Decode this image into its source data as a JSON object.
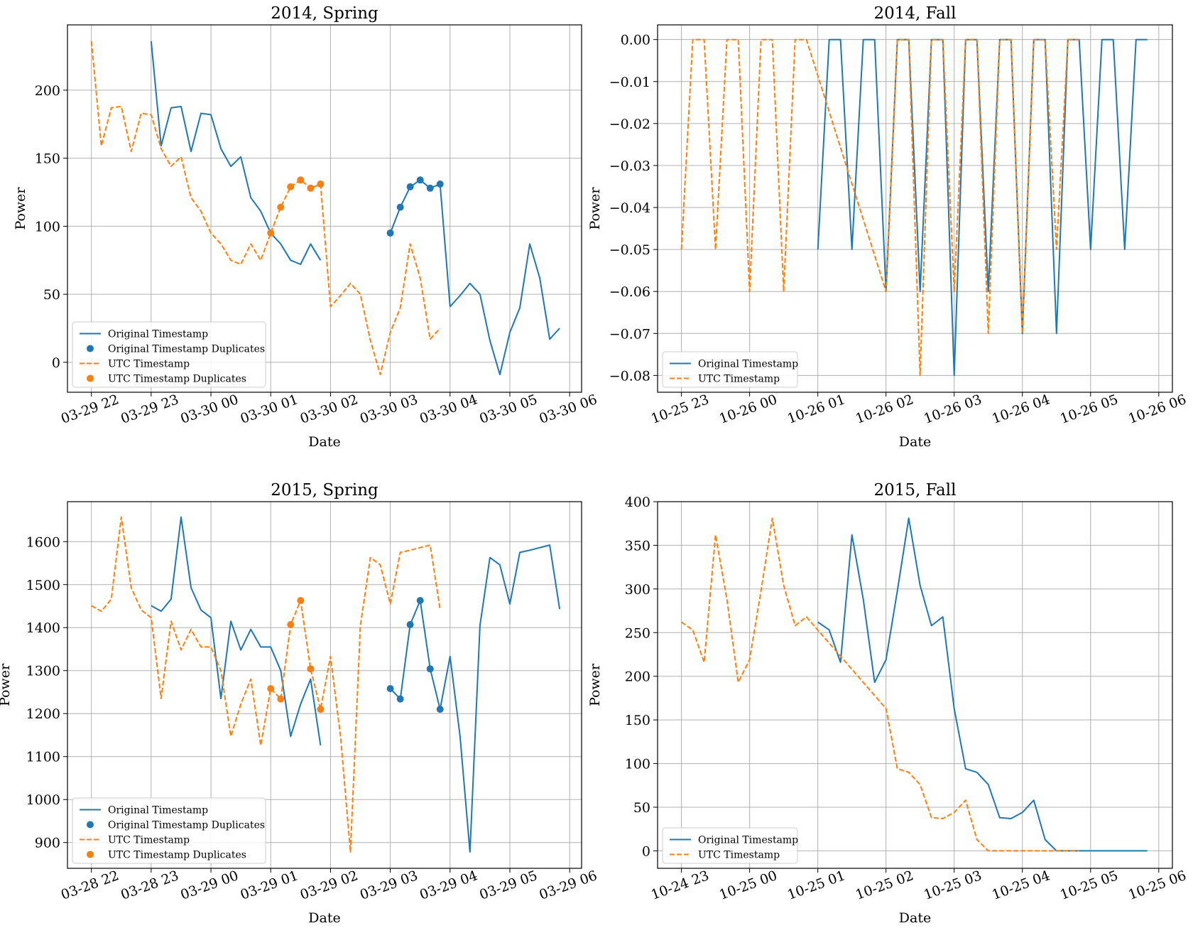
{
  "colors": {
    "original": "#1f77b4",
    "utc": "#ff7f0e",
    "grid": "#b0b0b0",
    "axis": "#000000"
  },
  "chart_data": [
    {
      "type": "line",
      "title": "2014, Spring",
      "xlabel": "Date",
      "ylabel": "Power",
      "x_unit": "hours",
      "xlim": [
        -0.4,
        8.2
      ],
      "ylim": [
        -22,
        248
      ],
      "yticks": [
        0,
        50,
        100,
        150,
        200
      ],
      "xtick_values": [
        0,
        1,
        2,
        3,
        4,
        5,
        6,
        7,
        8
      ],
      "xtick_labels": [
        "03-29 22",
        "03-29 23",
        "03-30 00",
        "03-30 01",
        "03-30 02",
        "03-30 03",
        "03-30 04",
        "03-30 05",
        "03-30 06"
      ],
      "grid": true,
      "legend_position": "lower-left",
      "legend": [
        "Original Timestamp",
        "Original Timestamp Duplicates",
        "UTC Timestamp",
        "UTC Timestamp Duplicates"
      ],
      "series": [
        {
          "name": "Original Timestamp",
          "style": "solid",
          "color": "original",
          "x": [
            1,
            1.167,
            1.333,
            1.5,
            1.667,
            1.833,
            2,
            2.167,
            2.333,
            2.5,
            2.667,
            2.833,
            3,
            3.167,
            3.333,
            3.5,
            3.667,
            3.833,
            null,
            5,
            5.167,
            5.333,
            5.5,
            5.667,
            5.833,
            6,
            6.167,
            6.333,
            6.5,
            6.667,
            6.833,
            7,
            7.167,
            7.333,
            7.5,
            7.667,
            7.833
          ],
          "y": [
            236,
            159,
            187,
            188,
            155,
            183,
            182,
            157,
            144,
            151,
            121,
            111,
            95,
            87,
            75,
            72,
            87,
            75,
            null,
            95,
            114,
            129,
            134,
            128,
            131,
            41,
            49,
            58,
            50,
            16,
            -9,
            22,
            40,
            87,
            62,
            17,
            25
          ]
        },
        {
          "name": "Original Timestamp Duplicates",
          "style": "markers",
          "color": "original",
          "x": [
            5,
            5.167,
            5.333,
            5.5,
            5.667,
            5.833
          ],
          "y": [
            95,
            114,
            129,
            134,
            128,
            131
          ]
        },
        {
          "name": "UTC Timestamp",
          "style": "dashed",
          "color": "utc",
          "x": [
            0,
            0.167,
            0.333,
            0.5,
            0.667,
            0.833,
            1,
            1.167,
            1.333,
            1.5,
            1.667,
            1.833,
            2,
            2.167,
            2.333,
            2.5,
            2.667,
            2.833,
            3,
            3.167,
            3.333,
            3.5,
            3.667,
            3.833,
            4,
            4.167,
            4.333,
            4.5,
            4.667,
            4.833,
            5,
            5.167,
            5.333,
            5.5,
            5.667,
            5.833
          ],
          "y": [
            236,
            159,
            187,
            188,
            155,
            183,
            182,
            157,
            144,
            151,
            121,
            111,
            95,
            87,
            75,
            72,
            87,
            75,
            95,
            114,
            129,
            134,
            128,
            131,
            41,
            49,
            58,
            50,
            16,
            -9,
            22,
            40,
            87,
            62,
            17,
            25
          ]
        },
        {
          "name": "UTC Timestamp Duplicates",
          "style": "markers",
          "color": "utc",
          "x": [
            3,
            3.167,
            3.333,
            3.5,
            3.667,
            3.833
          ],
          "y": [
            95,
            114,
            129,
            134,
            128,
            131
          ]
        }
      ]
    },
    {
      "type": "line",
      "title": "2014, Fall",
      "xlabel": "Date",
      "ylabel": "Power",
      "x_unit": "hours",
      "xlim": [
        -0.35,
        7.2
      ],
      "ylim": [
        -0.084,
        0.0035
      ],
      "yticks": [
        0,
        -0.01,
        -0.02,
        -0.03,
        -0.04,
        -0.05,
        -0.06,
        -0.07,
        -0.08
      ],
      "ytick_labels": [
        "0.00",
        "−0.01",
        "−0.02",
        "−0.03",
        "−0.04",
        "−0.05",
        "−0.06",
        "−0.07",
        "−0.08"
      ],
      "xtick_values": [
        0,
        1,
        2,
        3,
        4,
        5,
        6,
        7
      ],
      "xtick_labels": [
        "10-25 23",
        "10-26 00",
        "10-26 01",
        "10-26 02",
        "10-26 03",
        "10-26 04",
        "10-26 05",
        "10-26 06"
      ],
      "grid": true,
      "legend_position": "lower-left",
      "legend": [
        "Original Timestamp",
        "UTC Timestamp"
      ],
      "series": [
        {
          "name": "Original Timestamp",
          "style": "solid",
          "color": "original",
          "x": [
            2,
            2.167,
            2.333,
            2.5,
            2.667,
            2.833,
            3,
            3.167,
            3.333,
            3.5,
            3.667,
            3.833,
            4,
            4.167,
            4.333,
            4.5,
            4.667,
            4.833,
            5,
            5.167,
            5.333,
            5.5,
            5.667,
            5.833,
            6,
            6.167,
            6.333,
            6.5,
            6.667,
            6.833
          ],
          "y": [
            -0.05,
            0,
            0,
            -0.05,
            0,
            0,
            -0.06,
            0,
            0,
            -0.06,
            0,
            0,
            -0.08,
            0,
            0,
            -0.06,
            0,
            0,
            -0.07,
            0,
            0,
            -0.07,
            0,
            0,
            -0.05,
            0,
            0,
            -0.05,
            0,
            0
          ]
        },
        {
          "name": "UTC Timestamp",
          "style": "dashed",
          "color": "utc",
          "x": [
            0,
            0.167,
            0.333,
            0.5,
            0.667,
            0.833,
            1,
            1.167,
            1.333,
            1.5,
            1.667,
            1.833,
            3,
            3.167,
            3.333,
            3.5,
            3.667,
            3.833,
            4,
            4.167,
            4.333,
            4.5,
            4.667,
            4.833,
            5,
            5.167,
            5.333,
            5.5,
            5.667,
            5.833
          ],
          "y": [
            -0.05,
            0,
            0,
            -0.05,
            0,
            0,
            -0.06,
            0,
            0,
            -0.06,
            0,
            0,
            -0.06,
            0,
            0,
            -0.08,
            0,
            0,
            -0.06,
            0,
            0,
            -0.07,
            0,
            0,
            -0.07,
            0,
            0,
            -0.05,
            0,
            0
          ]
        }
      ]
    },
    {
      "type": "line",
      "title": "2015, Spring",
      "xlabel": "Date",
      "ylabel": "Power",
      "x_unit": "hours",
      "xlim": [
        -0.4,
        8.2
      ],
      "ylim": [
        840,
        1693
      ],
      "yticks": [
        900,
        1000,
        1100,
        1200,
        1300,
        1400,
        1500,
        1600
      ],
      "xtick_values": [
        0,
        1,
        2,
        3,
        4,
        5,
        6,
        7,
        8
      ],
      "xtick_labels": [
        "03-28 22",
        "03-28 23",
        "03-29 00",
        "03-29 01",
        "03-29 02",
        "03-29 03",
        "03-29 04",
        "03-29 05",
        "03-29 06"
      ],
      "grid": true,
      "legend_position": "lower-left",
      "legend": [
        "Original Timestamp",
        "Original Timestamp Duplicates",
        "UTC Timestamp",
        "UTC Timestamp Duplicates"
      ],
      "series": [
        {
          "name": "Original Timestamp",
          "style": "solid",
          "color": "original",
          "x": [
            1,
            1.167,
            1.333,
            1.5,
            1.667,
            1.833,
            2,
            2.167,
            2.333,
            2.5,
            2.667,
            2.833,
            3,
            3.167,
            3.333,
            3.5,
            3.667,
            3.833,
            null,
            5,
            5.167,
            5.333,
            5.5,
            5.667,
            5.833,
            6,
            6.167,
            6.333,
            6.5,
            6.667,
            6.833,
            7,
            7.167,
            7.333,
            7.5,
            7.667,
            7.833
          ],
          "y": [
            1451,
            1438,
            1466,
            1657,
            1493,
            1441,
            1423,
            1235,
            1415,
            1348,
            1396,
            1355,
            1355,
            1300,
            1147,
            1222,
            1280,
            1126,
            null,
            1258,
            1234,
            1407,
            1463,
            1304,
            1210,
            1333,
            1148,
            878,
            1405,
            1563,
            1546,
            1455,
            1575,
            1580,
            1586,
            1592,
            1443
          ]
        },
        {
          "name": "Original Timestamp Duplicates",
          "style": "markers",
          "color": "original",
          "x": [
            5,
            5.167,
            5.333,
            5.5,
            5.667,
            5.833
          ],
          "y": [
            1258,
            1234,
            1407,
            1463,
            1304,
            1210
          ]
        },
        {
          "name": "UTC Timestamp",
          "style": "dashed",
          "color": "utc",
          "x": [
            0,
            0.167,
            0.333,
            0.5,
            0.667,
            0.833,
            1,
            1.167,
            1.333,
            1.5,
            1.667,
            1.833,
            2,
            2.167,
            2.333,
            2.5,
            2.667,
            2.833,
            3,
            3.167,
            3.333,
            3.5,
            3.667,
            3.833,
            4,
            4.167,
            4.333,
            4.5,
            4.667,
            4.833,
            5,
            5.167,
            5.333,
            5.5,
            5.667,
            5.833
          ],
          "y": [
            1451,
            1438,
            1466,
            1657,
            1493,
            1441,
            1423,
            1235,
            1415,
            1348,
            1396,
            1355,
            1355,
            1300,
            1147,
            1222,
            1280,
            1126,
            1258,
            1234,
            1407,
            1463,
            1304,
            1210,
            1333,
            1148,
            878,
            1405,
            1563,
            1546,
            1455,
            1575,
            1580,
            1586,
            1592,
            1443
          ]
        },
        {
          "name": "UTC Timestamp Duplicates",
          "style": "markers",
          "color": "utc",
          "x": [
            3,
            3.167,
            3.333,
            3.5,
            3.667,
            3.833
          ],
          "y": [
            1258,
            1234,
            1407,
            1463,
            1304,
            1210
          ]
        }
      ]
    },
    {
      "type": "line",
      "title": "2015, Fall",
      "xlabel": "Date",
      "ylabel": "Power",
      "x_unit": "hours",
      "xlim": [
        -0.35,
        7.2
      ],
      "ylim": [
        -20,
        400
      ],
      "yticks": [
        0,
        50,
        100,
        150,
        200,
        250,
        300,
        350,
        400
      ],
      "xtick_values": [
        0,
        1,
        2,
        3,
        4,
        5,
        6,
        7
      ],
      "xtick_labels": [
        "10-24 23",
        "10-25 00",
        "10-25 01",
        "10-25 02",
        "10-25 03",
        "10-25 04",
        "10-25 05",
        "10-25 06"
      ],
      "grid": true,
      "legend_position": "lower-left",
      "legend": [
        "Original Timestamp",
        "UTC Timestamp"
      ],
      "series": [
        {
          "name": "Original Timestamp",
          "style": "solid",
          "color": "original",
          "x": [
            2,
            2.167,
            2.333,
            2.5,
            2.667,
            2.833,
            3,
            3.167,
            3.333,
            3.5,
            3.667,
            3.833,
            4,
            4.167,
            4.333,
            4.5,
            4.667,
            4.833,
            5,
            5.167,
            5.333,
            5.5,
            5.667,
            5.833,
            6,
            6.167,
            6.333,
            6.5,
            6.667,
            6.833
          ],
          "y": [
            262,
            253,
            216,
            362,
            288,
            193,
            219,
            298,
            381,
            304,
            258,
            268,
            163,
            94,
            90,
            76,
            38,
            37,
            44,
            58,
            13,
            0,
            0,
            0,
            0,
            0,
            0,
            0,
            0,
            0
          ]
        },
        {
          "name": "UTC Timestamp",
          "style": "dashed",
          "color": "utc",
          "x": [
            0,
            0.167,
            0.333,
            0.5,
            0.667,
            0.833,
            1,
            1.167,
            1.333,
            1.5,
            1.667,
            1.833,
            3,
            3.167,
            3.333,
            3.5,
            3.667,
            3.833,
            4,
            4.167,
            4.333,
            4.5,
            4.667,
            4.833,
            5,
            5.167,
            5.333,
            5.5,
            5.667,
            5.833
          ],
          "y": [
            262,
            253,
            216,
            362,
            288,
            193,
            219,
            298,
            381,
            304,
            258,
            268,
            163,
            94,
            90,
            76,
            38,
            37,
            44,
            58,
            13,
            0,
            0,
            0,
            0,
            0,
            0,
            0,
            0,
            0
          ]
        }
      ]
    }
  ]
}
